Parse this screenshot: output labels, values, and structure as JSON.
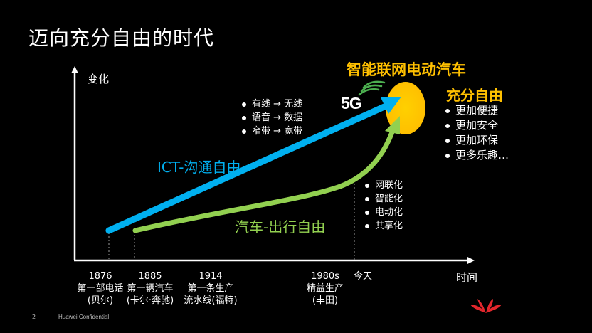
{
  "title": "迈向充分自由的时代",
  "axis": {
    "y_label": "变化",
    "x_label": "时间"
  },
  "goal": {
    "title": "智能联网电动汽车"
  },
  "freedom": {
    "title": "充分自由",
    "items": [
      "更加便捷",
      "更加安全",
      "更加环保",
      "更多乐趣…"
    ]
  },
  "ict": {
    "label": "ICT-沟通自由",
    "items": [
      "有线 → 无线",
      "语音 → 数据",
      "窄带 → 宽带"
    ]
  },
  "car": {
    "label": "汽车-出行自由",
    "items": [
      "网联化",
      "智能化",
      "电动化",
      "共享化"
    ]
  },
  "badge": "5G",
  "timeline": [
    {
      "year": "1876",
      "line1": "第一部电话",
      "line2": "(贝尔)"
    },
    {
      "year": "1885",
      "line1": "第一辆汽车",
      "line2": "(卡尔·奔驰)"
    },
    {
      "year": "1914",
      "line1": "第一条生产",
      "line2": "流水线(福特)"
    },
    {
      "year": "1980s",
      "line1": "精益生产",
      "line2": "(丰田)"
    },
    {
      "year": "今天",
      "line1": "",
      "line2": ""
    }
  ],
  "footer": {
    "page": "2",
    "confidential": "Huawei Confidential"
  },
  "colors": {
    "ict": "#00b0f0",
    "car": "#92d050",
    "highlight": "#ffc000",
    "background": "#000000",
    "logo": "#e3262c"
  }
}
